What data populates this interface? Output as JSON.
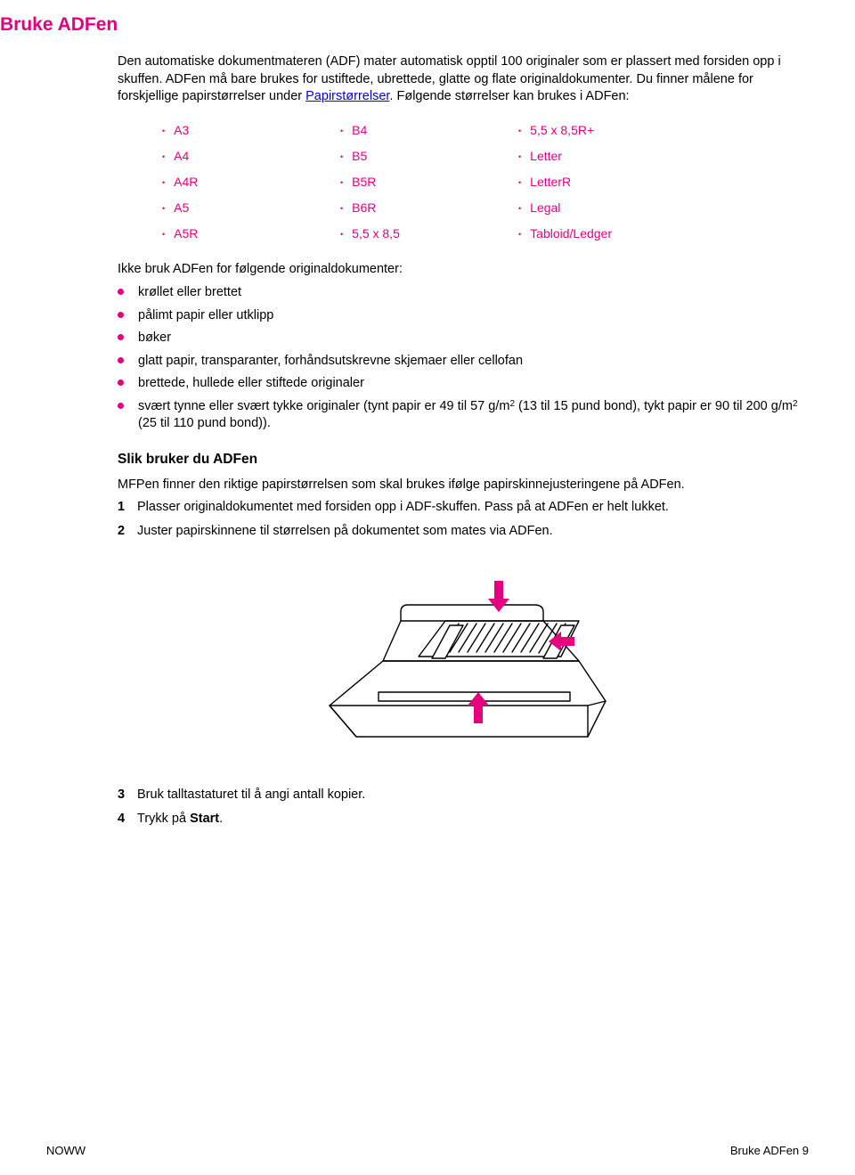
{
  "colors": {
    "accent": "#e6007e",
    "link": "#0000ee",
    "text": "#000000",
    "bg": "#ffffff"
  },
  "heading": "Bruke ADFen",
  "intro_parts": {
    "before_link": "Den automatiske dokumentmateren (ADF) mater automatisk opptil 100 originaler som er plassert med forsiden opp i skuffen. ADFen må bare brukes for ustiftede, ubrettede, glatte og flate originaldokumenter. Du finner målene for forskjellige papirstørrelser under ",
    "link_text": "Papirstørrelser",
    "after_link": ". Følgende størrelser kan brukes i ADFen:"
  },
  "sizes": [
    [
      "A3",
      "B4",
      "5,5 x 8,5R+"
    ],
    [
      "A4",
      "B5",
      "Letter"
    ],
    [
      "A4R",
      "B5R",
      "LetterR"
    ],
    [
      "A5",
      "B6R",
      "Legal"
    ],
    [
      "A5R",
      "5,5 x 8,5",
      "Tabloid/Ledger"
    ]
  ],
  "do_not_intro": "Ikke bruk ADFen for følgende originaldokumenter:",
  "do_not_items": [
    "krøllet eller brettet",
    "pålimt papir eller utklipp",
    "bøker",
    "glatt papir, transparanter, forhåndsutskrevne skjemaer eller cellofan",
    "brettede, hullede eller stiftede originaler"
  ],
  "do_not_last": {
    "a": "svært tynne eller svært tykke originaler (tynt papir er 49 til 57 g/m",
    "sup1": "2",
    "b": " (13 til 15 pund bond), tykt papir er 90 til 200 g/m",
    "sup2": "2",
    "c": " (25 til 110 pund bond))."
  },
  "section_heading": "Slik bruker du ADFen",
  "section_intro": "MFPen finner den riktige papirstørrelsen som skal brukes ifølge papirskinnejusteringene på ADFen.",
  "steps_top": [
    {
      "n": "1",
      "text": "Plasser originaldokumentet med forsiden opp i ADF-skuffen. Pass på at ADFen er helt lukket."
    },
    {
      "n": "2",
      "text": "Juster papirskinnene til størrelsen på dokumentet som mates via ADFen."
    }
  ],
  "steps_bottom": [
    {
      "n": "3",
      "text": "Bruk talltastaturet til å angi antall kopier."
    },
    {
      "n": "4",
      "prefix": "Trykk på ",
      "bold": "Start",
      "suffix": "."
    }
  ],
  "footer_left": "NOWW",
  "footer_right": "Bruke ADFen 9"
}
